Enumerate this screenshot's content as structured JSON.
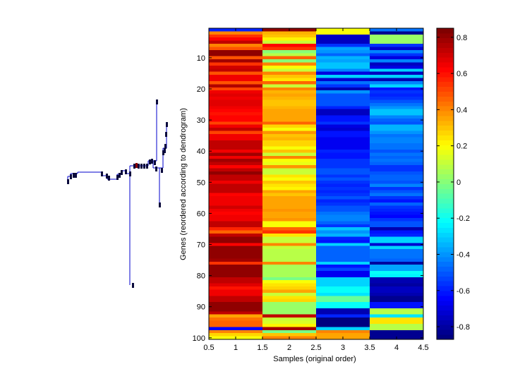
{
  "chart_data": {
    "type": "heatmap",
    "title": "",
    "xlabel": "Samples (original order)",
    "ylabel": "Genes (reordered according to dendrogram)",
    "xlim": [
      0.5,
      4.5
    ],
    "ylim": [
      0.5,
      100.5
    ],
    "y_direction": "reverse",
    "x_ticks": [
      0.5,
      1,
      1.5,
      2,
      2.5,
      3,
      3.5,
      4,
      4.5
    ],
    "x_tick_labels": [
      "0.5",
      "1",
      "1.5",
      "2",
      "2.5",
      "3",
      "3.5",
      "4",
      "4.5"
    ],
    "y_ticks": [
      10,
      20,
      30,
      40,
      50,
      60,
      70,
      80,
      90,
      100
    ],
    "y_tick_labels": [
      "10",
      "20",
      "30",
      "40",
      "50",
      "60",
      "70",
      "80",
      "90",
      "100"
    ],
    "colormap": "jet",
    "clim": [
      -0.87,
      0.85
    ],
    "colorbar": {
      "placement": "right",
      "ticks": [
        0.8,
        0.6,
        0.4,
        0.2,
        0,
        -0.2,
        -0.4,
        -0.6,
        -0.8
      ],
      "tick_labels": [
        "0.8",
        "0.6",
        "0.4",
        "0.2",
        "0",
        "-0.2",
        "-0.4",
        "-0.6",
        "-0.8"
      ]
    },
    "columns": [
      "1",
      "2",
      "3",
      "4"
    ],
    "values": [
      [
        -0.6,
        0.8,
        0.18,
        -0.45
      ],
      [
        0.42,
        0.32,
        0.18,
        -0.82
      ],
      [
        0.55,
        0.3,
        -0.75,
        0.02
      ],
      [
        0.62,
        0.22,
        -0.75,
        0.02
      ],
      [
        0.72,
        0.12,
        -0.75,
        0.02
      ],
      [
        0.42,
        0.62,
        -0.55,
        -0.55
      ],
      [
        0.5,
        0.55,
        -0.38,
        -0.72
      ],
      [
        0.82,
        0.0,
        -0.4,
        -0.42
      ],
      [
        0.82,
        0.08,
        -0.48,
        -0.55
      ],
      [
        0.5,
        0.45,
        -0.35,
        -0.7
      ],
      [
        0.78,
        0.0,
        -0.38,
        -0.42
      ],
      [
        0.55,
        0.4,
        -0.32,
        -0.75
      ],
      [
        0.7,
        0.2,
        -0.32,
        -0.7
      ],
      [
        0.74,
        0.12,
        -0.42,
        -0.3
      ],
      [
        0.5,
        0.42,
        -0.7,
        -0.75
      ],
      [
        0.64,
        0.3,
        -0.3,
        -0.3
      ],
      [
        0.64,
        0.25,
        -0.72,
        -0.78
      ],
      [
        0.5,
        0.45,
        -0.45,
        -0.42
      ],
      [
        0.76,
        0.12,
        -0.55,
        -0.3
      ],
      [
        0.52,
        0.4,
        -0.78,
        -0.62
      ],
      [
        0.64,
        0.32,
        -0.4,
        -0.55
      ],
      [
        0.68,
        0.36,
        -0.5,
        -0.6
      ],
      [
        0.66,
        0.32,
        -0.5,
        -0.55
      ],
      [
        0.68,
        0.3,
        -0.5,
        -0.5
      ],
      [
        0.68,
        0.3,
        -0.5,
        -0.45
      ],
      [
        0.66,
        0.32,
        -0.6,
        -0.4
      ],
      [
        0.62,
        0.36,
        -0.75,
        -0.32
      ],
      [
        0.6,
        0.36,
        -0.75,
        -0.32
      ],
      [
        0.62,
        0.36,
        -0.62,
        -0.42
      ],
      [
        0.62,
        0.36,
        -0.62,
        -0.48
      ],
      [
        0.52,
        0.45,
        -0.56,
        -0.5
      ],
      [
        0.64,
        0.28,
        -0.7,
        -0.35
      ],
      [
        0.72,
        0.18,
        -0.72,
        -0.35
      ],
      [
        0.52,
        0.38,
        -0.62,
        -0.4
      ],
      [
        0.66,
        0.3,
        -0.62,
        -0.45
      ],
      [
        0.66,
        0.32,
        -0.66,
        -0.42
      ],
      [
        0.72,
        0.26,
        -0.66,
        -0.42
      ],
      [
        0.72,
        0.26,
        -0.66,
        -0.45
      ],
      [
        0.72,
        0.2,
        -0.66,
        -0.45
      ],
      [
        0.66,
        0.3,
        -0.6,
        -0.52
      ],
      [
        0.78,
        0.12,
        -0.62,
        -0.45
      ],
      [
        0.64,
        0.4,
        -0.62,
        -0.48
      ],
      [
        0.78,
        0.18,
        -0.56,
        -0.45
      ],
      [
        0.72,
        0.16,
        -0.55,
        -0.48
      ],
      [
        0.62,
        0.38,
        -0.56,
        -0.55
      ],
      [
        0.72,
        0.1,
        -0.52,
        -0.55
      ],
      [
        0.8,
        0.1,
        -0.5,
        -0.5
      ],
      [
        0.72,
        0.25,
        -0.56,
        -0.48
      ],
      [
        0.72,
        0.2,
        -0.52,
        -0.48
      ],
      [
        0.64,
        0.3,
        -0.56,
        -0.5
      ],
      [
        0.72,
        0.25,
        -0.6,
        -0.42
      ],
      [
        0.72,
        0.22,
        -0.56,
        -0.55
      ],
      [
        0.72,
        0.36,
        -0.6,
        -0.52
      ],
      [
        0.62,
        0.3,
        -0.56,
        -0.45
      ],
      [
        0.66,
        0.36,
        -0.5,
        -0.56
      ],
      [
        0.64,
        0.36,
        -0.6,
        -0.62
      ],
      [
        0.66,
        0.34,
        -0.56,
        -0.48
      ],
      [
        0.7,
        0.34,
        -0.5,
        -0.55
      ],
      [
        0.66,
        0.38,
        -0.5,
        -0.6
      ],
      [
        0.62,
        0.34,
        -0.46,
        -0.62
      ],
      [
        0.66,
        0.34,
        -0.42,
        -0.65
      ],
      [
        0.66,
        0.38,
        -0.42,
        -0.55
      ],
      [
        0.74,
        0.2,
        -0.48,
        -0.5
      ],
      [
        0.74,
        0.2,
        -0.56,
        -0.5
      ],
      [
        0.56,
        0.46,
        -0.32,
        -0.78
      ],
      [
        0.46,
        0.54,
        -0.4,
        -0.62
      ],
      [
        0.74,
        0.24,
        -0.34,
        -0.6
      ],
      [
        0.8,
        0.12,
        -0.58,
        -0.3
      ],
      [
        0.8,
        0.1,
        -0.62,
        -0.3
      ],
      [
        0.62,
        0.4,
        -0.28,
        -0.72
      ],
      [
        0.8,
        0.1,
        -0.48,
        -0.3
      ],
      [
        0.82,
        0.08,
        -0.48,
        -0.45
      ],
      [
        0.82,
        0.08,
        -0.48,
        -0.45
      ],
      [
        0.82,
        0.08,
        -0.48,
        -0.45
      ],
      [
        0.78,
        0.08,
        -0.48,
        -0.48
      ],
      [
        0.54,
        0.42,
        -0.3,
        -0.8
      ],
      [
        0.8,
        0.06,
        -0.62,
        -0.38
      ],
      [
        0.82,
        0.06,
        -0.54,
        -0.38
      ],
      [
        0.82,
        0.06,
        -0.68,
        -0.22
      ],
      [
        0.8,
        0.06,
        -0.68,
        -0.25
      ],
      [
        0.74,
        -0.02,
        -0.28,
        -0.78
      ],
      [
        0.72,
        0.18,
        -0.28,
        -0.78
      ],
      [
        0.68,
        0.24,
        -0.28,
        -0.8
      ],
      [
        0.6,
        0.28,
        -0.22,
        -0.75
      ],
      [
        0.66,
        0.34,
        -0.22,
        -0.75
      ],
      [
        0.66,
        0.12,
        -0.26,
        -0.78
      ],
      [
        0.74,
        0.24,
        -0.06,
        -0.84
      ],
      [
        0.72,
        0.28,
        -0.06,
        -0.84
      ],
      [
        0.8,
        0.02,
        -0.22,
        -0.62
      ],
      [
        0.8,
        0.02,
        -0.22,
        -0.62
      ],
      [
        0.8,
        0.02,
        -0.78,
        0.08
      ],
      [
        0.72,
        0.04,
        -0.78,
        0.08
      ],
      [
        0.36,
        0.72,
        -0.6,
        -0.26
      ],
      [
        0.44,
        0.12,
        -0.86,
        0.24
      ],
      [
        0.46,
        0.14,
        -0.86,
        0.24
      ],
      [
        0.46,
        0.22,
        -0.86,
        0.08
      ],
      [
        -0.65,
        0.78,
        -0.28,
        0.08
      ],
      [
        0.42,
        -0.02,
        0.4,
        -0.84
      ],
      [
        0.28,
        0.3,
        0.34,
        -0.84
      ],
      [
        0.18,
        0.42,
        0.34,
        -0.84
      ]
    ],
    "dendrogram": {
      "placement": "left",
      "orientation": "vertical",
      "color": "#0000cc",
      "leaf_marker_color": "#0a0a3c",
      "highlight_marker_color": "#8b0000"
    }
  }
}
